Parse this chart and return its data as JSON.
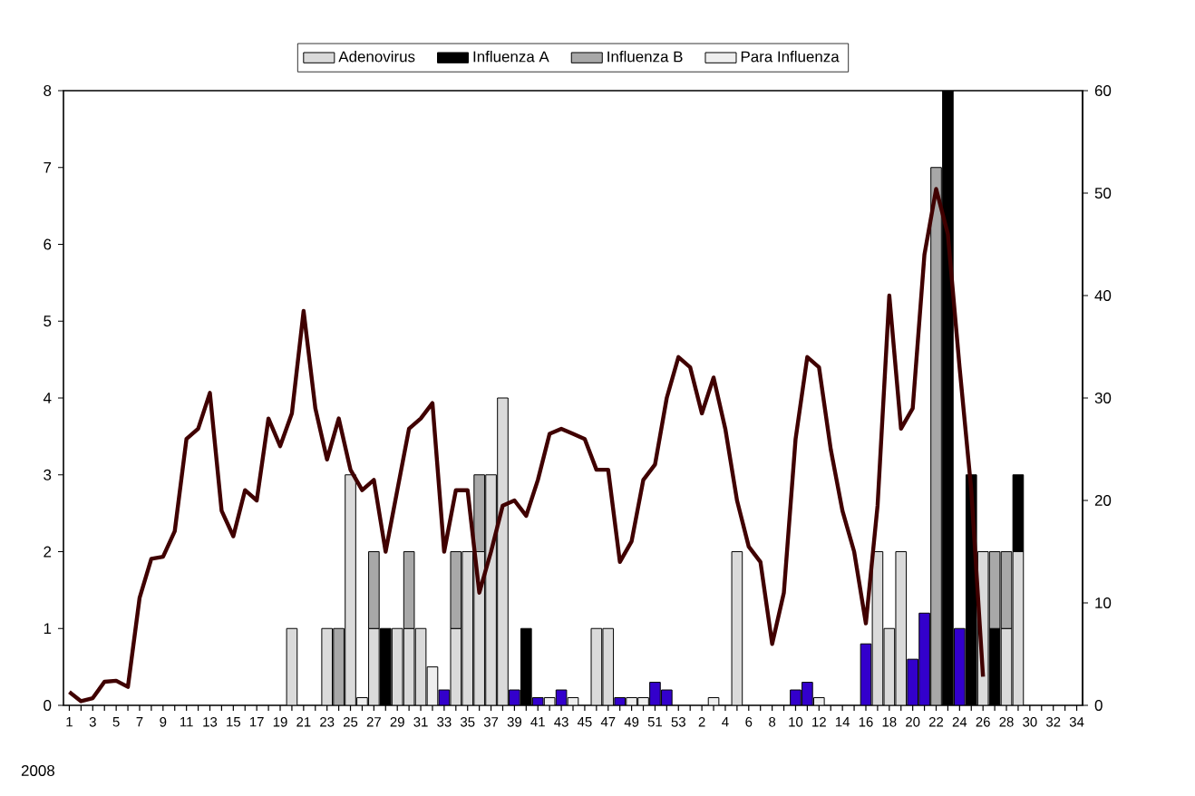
{
  "chart_data": {
    "type": "bar",
    "stacked": true,
    "categories": [
      "1",
      null,
      "3",
      null,
      "5",
      null,
      "7",
      null,
      "9",
      null,
      "11",
      null,
      "13",
      null,
      "15",
      null,
      "17",
      null,
      "19",
      null,
      "21",
      null,
      "23",
      null,
      "25",
      null,
      "27",
      null,
      "29",
      null,
      "31",
      null,
      "33",
      null,
      "35",
      null,
      "37",
      null,
      "39",
      null,
      "41",
      null,
      "43",
      null,
      "45",
      null,
      "47",
      null,
      "49",
      null,
      "51",
      null,
      "53",
      null,
      "2",
      null,
      "4",
      null,
      "6",
      null,
      "8",
      null,
      "10",
      null,
      "12",
      null,
      "14",
      null,
      "16",
      null,
      "18",
      null,
      "20",
      null,
      "22",
      null,
      "24",
      null,
      "26",
      null,
      "28",
      null,
      "30",
      null,
      "32",
      null,
      "34"
    ],
    "series": [
      {
        "name": "Adenovirus",
        "color": "#dadada",
        "values": [
          0,
          0,
          0,
          0,
          0,
          0,
          0,
          0,
          0,
          0,
          0,
          0,
          0,
          0,
          0,
          0,
          0,
          0,
          0,
          1,
          0,
          0,
          1,
          0,
          3,
          0,
          1,
          0,
          1,
          1,
          1,
          0,
          0,
          1,
          2,
          2,
          3,
          4,
          0,
          0,
          0,
          0,
          0,
          0,
          0,
          1,
          1,
          0,
          0,
          0,
          0,
          0,
          0,
          0,
          0,
          0,
          0,
          2,
          0,
          0,
          0,
          0,
          0,
          0,
          0,
          0,
          0,
          0,
          0,
          2,
          1,
          2,
          0,
          0,
          0,
          0,
          0,
          0,
          2,
          0,
          1,
          2,
          0,
          0,
          0,
          0,
          0
        ]
      },
      {
        "name": "Influenza A",
        "color": "#000000",
        "values": [
          0,
          0,
          0,
          0,
          0,
          0,
          0,
          0,
          0,
          0,
          0,
          0,
          0,
          0,
          0,
          0,
          0,
          0,
          0,
          0,
          0,
          0,
          0,
          0,
          0,
          0,
          0,
          1,
          0,
          0,
          0,
          0,
          0,
          0,
          0,
          0,
          0,
          0,
          0,
          1,
          0,
          0,
          0,
          0,
          0,
          0,
          0,
          0,
          0,
          0,
          0,
          0,
          0,
          0,
          0,
          0,
          0,
          0,
          0,
          0,
          0,
          0,
          0,
          0,
          0,
          0,
          0,
          0,
          0,
          0,
          0,
          0,
          0,
          0,
          0,
          8,
          0,
          3,
          0,
          1,
          0,
          1,
          0,
          0,
          0,
          0,
          0
        ]
      },
      {
        "name": "Influenza B",
        "color": "#a8a8a8",
        "values": [
          0,
          0,
          0,
          0,
          0,
          0,
          0,
          0,
          0,
          0,
          0,
          0,
          0,
          0,
          0,
          0,
          0,
          0,
          0,
          0,
          0,
          0,
          0,
          1,
          0,
          0,
          1,
          0,
          0,
          1,
          0,
          0,
          0,
          1,
          0,
          1,
          0,
          0,
          0,
          0,
          0,
          0,
          0,
          0,
          0,
          0,
          0,
          0,
          0,
          0,
          0,
          0,
          0,
          0,
          0,
          0,
          0,
          0,
          0,
          0,
          0,
          0,
          0,
          0,
          0,
          0,
          0,
          0,
          0,
          0,
          0,
          0,
          0,
          0,
          7,
          0,
          0,
          0,
          0,
          1,
          1,
          0,
          0,
          0,
          0,
          0,
          0
        ]
      },
      {
        "name": "Para Influenza",
        "color": "#eeeeee",
        "values": [
          0,
          0,
          0,
          0,
          0,
          0,
          0,
          0,
          0,
          0,
          0,
          0,
          0,
          0,
          0,
          0,
          0,
          0,
          0,
          0,
          0,
          0,
          0,
          0,
          0,
          0.1,
          0,
          0,
          0,
          0,
          0,
          0.5,
          0,
          0,
          0,
          0,
          0,
          0,
          0,
          0,
          0,
          0.1,
          0,
          0.1,
          0,
          0,
          0,
          0,
          0.1,
          0.1,
          0,
          0,
          0,
          0,
          0,
          0.1,
          0,
          0,
          0,
          0,
          0,
          0,
          0,
          0,
          0.1,
          0,
          0,
          0,
          0,
          0,
          0,
          0,
          0,
          0,
          0,
          0,
          0,
          0,
          0,
          0,
          0,
          0,
          0,
          0,
          0,
          0,
          0
        ]
      },
      {
        "color": "#3300cc",
        "values": [
          0,
          0,
          0,
          0,
          0,
          0,
          0,
          0,
          0,
          0,
          0,
          0,
          0,
          0,
          0,
          0,
          0,
          0,
          0,
          0,
          0,
          0,
          0,
          0,
          0,
          0,
          0,
          0,
          0,
          0,
          0,
          0,
          0.2,
          0,
          0,
          0,
          0,
          0,
          0.2,
          0,
          0.1,
          0,
          0.2,
          0,
          0,
          0,
          0,
          0.1,
          0,
          0,
          0.3,
          0.2,
          0,
          0,
          0,
          0,
          0,
          0,
          0,
          0,
          0,
          0,
          0.2,
          0.3,
          0,
          0,
          0,
          0,
          0.8,
          0,
          0,
          0,
          0.6,
          1.2,
          0,
          0,
          1,
          0,
          0,
          0,
          0,
          0,
          0,
          0,
          0,
          0,
          0
        ]
      },
      {
        "type": "line",
        "axis": "y2",
        "color": "#400000",
        "values": [
          1.3,
          0.4,
          0.7,
          2.3,
          2.4,
          1.8,
          10.5,
          14.3,
          14.5,
          17,
          26,
          27,
          30.5,
          19,
          16.5,
          21,
          20,
          28,
          25.3,
          28.5,
          38.5,
          29,
          24,
          28,
          23,
          21,
          22,
          15,
          21,
          27,
          28,
          29.5,
          15,
          21,
          21,
          11,
          15,
          19.5,
          20,
          18.5,
          22,
          26.5,
          27,
          26.5,
          26,
          23,
          23,
          14,
          16,
          22,
          23.5,
          30,
          34,
          33,
          28.5,
          32,
          27,
          20,
          15.5,
          14,
          6,
          11,
          26,
          34,
          33,
          25,
          19,
          15,
          8,
          19.5,
          40,
          27,
          29,
          44,
          50.4,
          46,
          33,
          21,
          2.8,
          null,
          null,
          null,
          null,
          null,
          null,
          null,
          null
        ]
      }
    ],
    "ylim": [
      0,
      8
    ],
    "yticks": [
      0,
      1,
      2,
      3,
      4,
      5,
      6,
      7,
      8
    ],
    "y2lim": [
      0,
      60
    ],
    "y2ticks": [
      0,
      10,
      20,
      30,
      40,
      50,
      60
    ],
    "legend": "top",
    "annotations": [
      "2008"
    ]
  }
}
